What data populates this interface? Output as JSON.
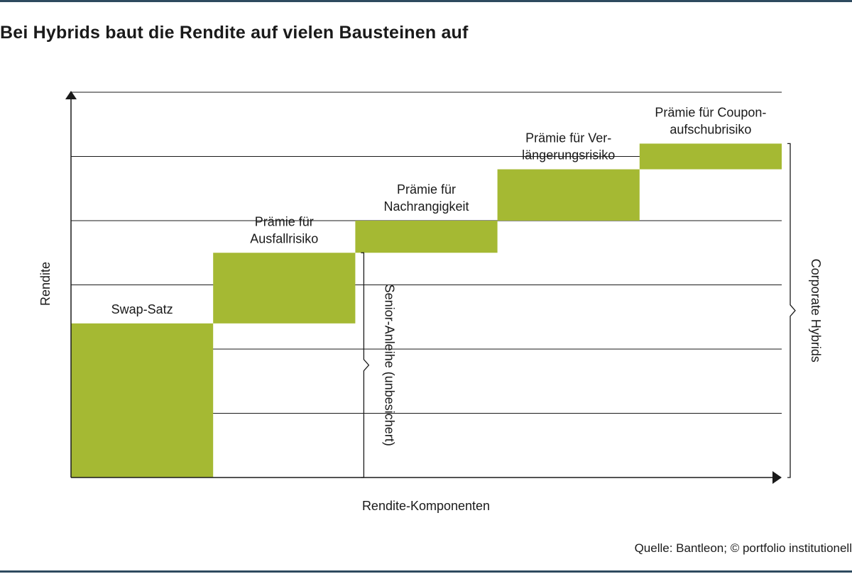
{
  "title": "Bei Hybrids baut die Rendite auf vielen Bausteinen auf",
  "source": "Quelle: Bantleon; © portfolio institutionell",
  "colors": {
    "bar": "#a5b933",
    "axis": "#1a1a1a",
    "frame": "#2e4a5f"
  },
  "chart_data": {
    "type": "bar",
    "subtype": "waterfall",
    "xlabel": "Rendite-Komponenten",
    "ylabel": "Rendite",
    "ylim": [
      0,
      6
    ],
    "grid": true,
    "categories": [
      [
        "Swap-Satz"
      ],
      [
        "Prämie für",
        "Ausfallrisiko"
      ],
      [
        "Prämie für",
        "Nachrangigkeit"
      ],
      [
        "Prämie für Ver-",
        "längerungsrisiko"
      ],
      [
        "Prämie für Coupon-",
        "aufschubrisiko"
      ]
    ],
    "segments": [
      {
        "base": 0.0,
        "value": 2.4
      },
      {
        "base": 2.4,
        "value": 1.1
      },
      {
        "base": 3.5,
        "value": 0.5
      },
      {
        "base": 4.0,
        "value": 0.8
      },
      {
        "base": 4.8,
        "value": 0.4
      }
    ],
    "brackets": [
      {
        "label": "Senior-Anleihe (unbesichert)",
        "from": 0.0,
        "to": 3.5
      },
      {
        "label": "Corporate Hybrids",
        "from": 0.0,
        "to": 5.2
      }
    ]
  }
}
